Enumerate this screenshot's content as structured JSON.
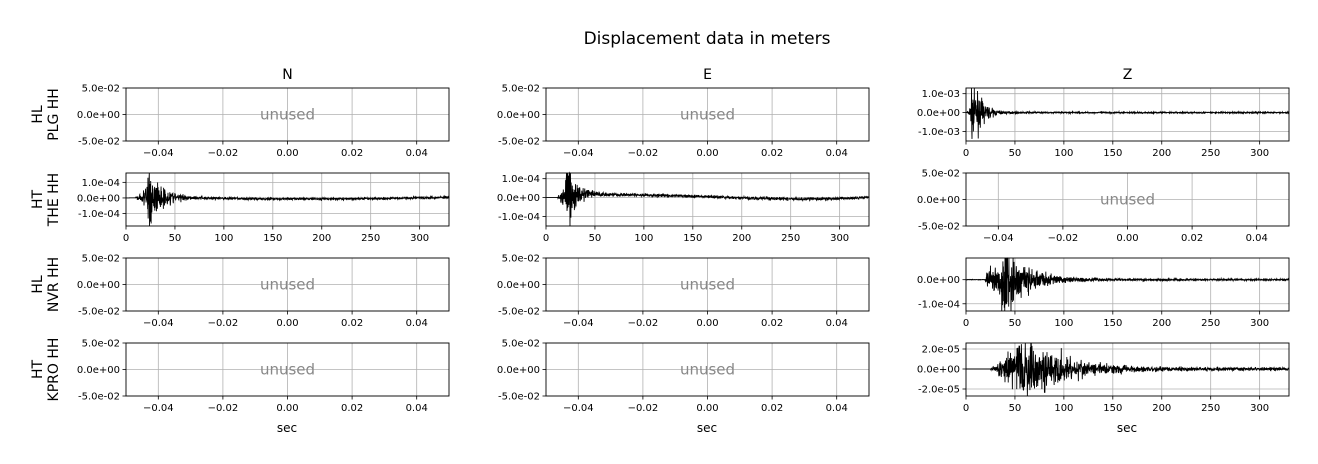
{
  "chart_data": {
    "type": "line",
    "title": "Displacement data in meters",
    "columns": [
      "N",
      "E",
      "Z"
    ],
    "row_labels": [
      [
        "HL",
        "PLG HH"
      ],
      [
        "HT",
        "THE HH"
      ],
      [
        "HL",
        "NVR HH"
      ],
      [
        "HT",
        "KPRO HH"
      ]
    ],
    "xlabel": "sec",
    "unused_text": "unused",
    "grid": true,
    "trace_color": "#000000",
    "unused_color": "#888888",
    "panels": [
      [
        {
          "used": false,
          "xlim": [
            -0.05,
            0.05
          ],
          "ylim": [
            -0.05,
            0.05
          ],
          "xticks": [
            "−0.04",
            "−0.02",
            "0.00",
            "0.02",
            "0.04"
          ],
          "xtick_values": [
            -0.04,
            -0.02,
            0,
            0.02,
            0.04
          ],
          "yticks": [
            "5.0e-02",
            "0.0e+00",
            "-5.0e-02"
          ],
          "ytick_values": [
            0.05,
            0,
            -0.05
          ]
        },
        {
          "used": false,
          "xlim": [
            -0.05,
            0.05
          ],
          "ylim": [
            -0.05,
            0.05
          ],
          "xticks": [
            "−0.04",
            "−0.02",
            "0.00",
            "0.02",
            "0.04"
          ],
          "xtick_values": [
            -0.04,
            -0.02,
            0,
            0.02,
            0.04
          ],
          "yticks": [
            "5.0e-02",
            "0.0e+00",
            "-5.0e-02"
          ],
          "ytick_values": [
            0.05,
            0,
            -0.05
          ]
        },
        {
          "used": true,
          "xlim": [
            0,
            330
          ],
          "ylim": [
            -0.0015,
            0.0013
          ],
          "xticks": [
            "0",
            "50",
            "100",
            "150",
            "200",
            "250",
            "300"
          ],
          "xtick_values": [
            0,
            50,
            100,
            150,
            200,
            250,
            300
          ],
          "yticks": [
            "1.0e-03",
            "0.0e+00",
            "-1.0e-03"
          ],
          "ytick_values": [
            0.001,
            0,
            -0.001
          ],
          "signal": {
            "onset": 1,
            "peak_time": 7,
            "peak_amp": 0.0013,
            "decay": 9,
            "coda_amp": 3e-05,
            "drift": []
          }
        }
      ],
      [
        {
          "used": true,
          "xlim": [
            0,
            330
          ],
          "ylim": [
            -0.00018,
            0.00016
          ],
          "xticks": [
            "0",
            "50",
            "100",
            "150",
            "200",
            "250",
            "300"
          ],
          "xtick_values": [
            0,
            50,
            100,
            150,
            200,
            250,
            300
          ],
          "yticks": [
            "1.0e-04",
            "0.0e+00",
            "-1.0e-04"
          ],
          "ytick_values": [
            0.0001,
            0,
            -0.0001
          ],
          "signal": {
            "onset": 10,
            "peak_time": 24,
            "peak_amp": 0.00017,
            "decay": 12,
            "coda_amp": 6e-06,
            "drift": [
              [
                0,
                0
              ],
              [
                40,
                5e-06
              ],
              [
                80,
                0
              ],
              [
                120,
                -5e-06
              ],
              [
                200,
                -6e-06
              ],
              [
                260,
                -4e-06
              ],
              [
                330,
                5e-06
              ]
            ]
          }
        },
        {
          "used": true,
          "xlim": [
            0,
            330
          ],
          "ylim": [
            -0.00015,
            0.00013
          ],
          "xticks": [
            "0",
            "50",
            "100",
            "150",
            "200",
            "250",
            "300"
          ],
          "xtick_values": [
            0,
            50,
            100,
            150,
            200,
            250,
            300
          ],
          "yticks": [
            "1.0e-04",
            "0.0e+00",
            "-1.0e-04"
          ],
          "ytick_values": [
            0.0001,
            0,
            -0.0001
          ],
          "signal": {
            "onset": 12,
            "peak_time": 22,
            "peak_amp": 0.00014,
            "decay": 10,
            "coda_amp": 6e-06,
            "drift": [
              [
                0,
                0
              ],
              [
                25,
                0
              ],
              [
                40,
                2e-05
              ],
              [
                80,
                1.5e-05
              ],
              [
                150,
                8e-06
              ],
              [
                200,
                -2e-06
              ],
              [
                260,
                -8e-06
              ],
              [
                300,
                -5e-06
              ],
              [
                330,
                3e-06
              ]
            ]
          }
        },
        {
          "used": false,
          "xlim": [
            -0.05,
            0.05
          ],
          "ylim": [
            -0.05,
            0.05
          ],
          "xticks": [
            "−0.04",
            "−0.02",
            "0.00",
            "0.02",
            "0.04"
          ],
          "xtick_values": [
            -0.04,
            -0.02,
            0,
            0.02,
            0.04
          ],
          "yticks": [
            "5.0e-02",
            "0.0e+00",
            "-5.0e-02"
          ],
          "ytick_values": [
            0.05,
            0,
            -0.05
          ]
        }
      ],
      [
        {
          "used": false,
          "xlim": [
            -0.05,
            0.05
          ],
          "ylim": [
            -0.05,
            0.05
          ],
          "xticks": [
            "−0.04",
            "−0.02",
            "0.00",
            "0.02",
            "0.04"
          ],
          "xtick_values": [
            -0.04,
            -0.02,
            0,
            0.02,
            0.04
          ],
          "yticks": [
            "5.0e-02",
            "0.0e+00",
            "-5.0e-02"
          ],
          "ytick_values": [
            0.05,
            0,
            -0.05
          ]
        },
        {
          "used": false,
          "xlim": [
            -0.05,
            0.05
          ],
          "ylim": [
            -0.05,
            0.05
          ],
          "xticks": [
            "−0.04",
            "−0.02",
            "0.00",
            "0.02",
            "0.04"
          ],
          "xtick_values": [
            -0.04,
            -0.02,
            0,
            0.02,
            0.04
          ],
          "yticks": [
            "5.0e-02",
            "0.0e+00",
            "-5.0e-02"
          ],
          "ytick_values": [
            0.05,
            0,
            -0.05
          ]
        },
        {
          "used": true,
          "xlim": [
            0,
            330
          ],
          "ylim": [
            -0.00013,
            9e-05
          ],
          "xticks": [
            "0",
            "50",
            "100",
            "150",
            "200",
            "250",
            "300"
          ],
          "xtick_values": [
            0,
            50,
            100,
            150,
            200,
            250,
            300
          ],
          "yticks": [
            "0.0e+00",
            "-1.0e-04"
          ],
          "ytick_values": [
            0,
            -0.0001
          ],
          "signal": {
            "onset": 20,
            "peak_time": 38,
            "peak_amp": 0.00012,
            "decay": 18,
            "coda_amp": 3e-06,
            "pre_amp": 2e-05,
            "drift": []
          }
        }
      ],
      [
        {
          "used": false,
          "xlim": [
            -0.05,
            0.05
          ],
          "ylim": [
            -0.05,
            0.05
          ],
          "xticks": [
            "−0.04",
            "−0.02",
            "0.00",
            "0.02",
            "0.04"
          ],
          "xtick_values": [
            -0.04,
            -0.02,
            0,
            0.02,
            0.04
          ],
          "yticks": [
            "5.0e-02",
            "0.0e+00",
            "-5.0e-02"
          ],
          "ytick_values": [
            0.05,
            0,
            -0.05
          ]
        },
        {
          "used": false,
          "xlim": [
            -0.05,
            0.05
          ],
          "ylim": [
            -0.05,
            0.05
          ],
          "xticks": [
            "−0.04",
            "−0.02",
            "0.00",
            "0.02",
            "0.04"
          ],
          "xtick_values": [
            -0.04,
            -0.02,
            0,
            0.02,
            0.04
          ],
          "yticks": [
            "5.0e-02",
            "0.0e+00",
            "-5.0e-02"
          ],
          "ytick_values": [
            0.05,
            0,
            -0.05
          ]
        },
        {
          "used": true,
          "xlim": [
            0,
            330
          ],
          "ylim": [
            -2.7e-05,
            2.6e-05
          ],
          "xticks": [
            "0",
            "50",
            "100",
            "150",
            "200",
            "250",
            "300"
          ],
          "xtick_values": [
            0,
            50,
            100,
            150,
            200,
            250,
            300
          ],
          "yticks": [
            "2.0e-05",
            "0.0e+00",
            "-2.0e-05"
          ],
          "ytick_values": [
            2e-05,
            0,
            -2e-05
          ],
          "signal": {
            "onset": 25,
            "peak_time": 60,
            "peak_amp": 2.4e-05,
            "decay": 40,
            "coda_amp": 1.2e-06,
            "build": 25,
            "drift": []
          }
        }
      ]
    ]
  }
}
